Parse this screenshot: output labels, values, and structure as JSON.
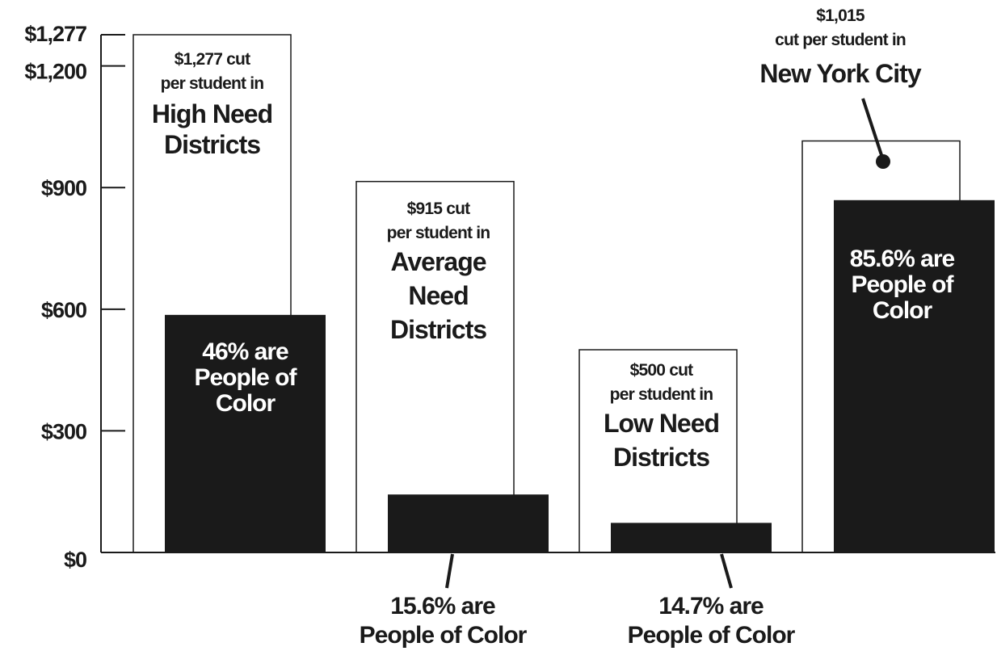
{
  "chart_data": {
    "type": "bar",
    "yticks": [
      "$0",
      "$300",
      "$600",
      "$900",
      "$1,200",
      "$1,277"
    ],
    "ytick_values": [
      0,
      300,
      600,
      900,
      1200,
      1277
    ],
    "ylim": [
      0,
      1277
    ],
    "categories": [
      "High Need Districts",
      "Average Need Districts",
      "Low Need Districts",
      "New York City"
    ],
    "series": [
      {
        "name": "cut per student",
        "values": [
          1277,
          915,
          500,
          1015
        ],
        "color": "#ffffff"
      },
      {
        "name": "People of Color",
        "values": [
          586,
          143,
          73,
          869
        ],
        "color": "#1a1a1a"
      }
    ],
    "groups": [
      {
        "cut_line1": "$1,277 cut",
        "cut_line2": "per student in",
        "name_lines": [
          "High Need",
          "Districts"
        ],
        "poc_lines": [
          "46% are",
          "People of",
          "Color"
        ],
        "poc_position": "inside"
      },
      {
        "cut_line1": "$915 cut",
        "cut_line2": "per student in",
        "name_lines": [
          "Average",
          "Need",
          "Districts"
        ],
        "poc_lines": [
          "15.6% are",
          "People of Color"
        ],
        "poc_position": "below"
      },
      {
        "cut_line1": "$500 cut",
        "cut_line2": "per student in",
        "name_lines": [
          "Low Need",
          "Districts"
        ],
        "poc_lines": [
          "14.7% are",
          "People of Color"
        ],
        "poc_position": "below"
      },
      {
        "cut_line1": "$1,015",
        "cut_line2": "cut per student in",
        "name_lines": [
          "New York City"
        ],
        "poc_lines": [
          "85.6% are",
          "People of",
          "Color"
        ],
        "poc_position": "inside"
      }
    ]
  }
}
